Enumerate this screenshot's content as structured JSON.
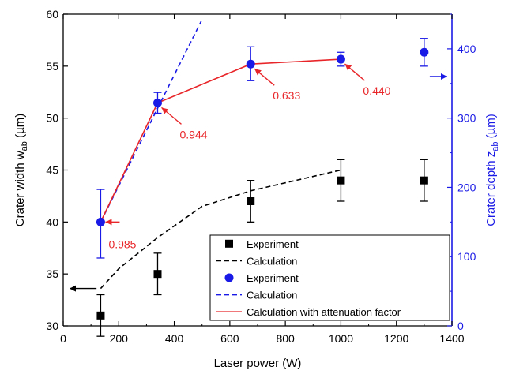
{
  "chart_data": {
    "type": "scatter",
    "xlabel": "Laser power (W)",
    "ylabel_left": {
      "main": "Crater width w",
      "sub": "ab",
      "unit": " (µm)"
    },
    "ylabel_right": {
      "main": "Crater depth z",
      "sub": "ab",
      "unit": " (µm)"
    },
    "xlim": [
      0,
      1400
    ],
    "ylim_left": [
      30,
      60
    ],
    "ylim_right": [
      0,
      450
    ],
    "x_ticks": [
      0,
      200,
      400,
      600,
      800,
      1000,
      1200,
      1400
    ],
    "y_left_ticks": [
      30,
      35,
      40,
      45,
      50,
      55,
      60
    ],
    "y_right_ticks": [
      0,
      100,
      200,
      300,
      400
    ],
    "grid": false,
    "legend_position": "bottom-right",
    "colors": {
      "black": "#000000",
      "blue": "#1a1ae6",
      "red": "#e8262a"
    },
    "series": [
      {
        "name": "Experiment",
        "axis": "left",
        "marker": "square",
        "color": "#000000",
        "x": [
          135,
          340,
          675,
          1000,
          1300
        ],
        "y": [
          31,
          35,
          42,
          44,
          44
        ],
        "err": [
          2,
          2,
          2,
          2,
          2
        ]
      },
      {
        "name": "Calculation",
        "axis": "left",
        "style": "dashed",
        "color": "#000000",
        "x": [
          135,
          200,
          340,
          500,
          675,
          1000
        ],
        "y": [
          33.6,
          35.5,
          38.5,
          41.5,
          43.0,
          45.0
        ]
      },
      {
        "name": "Experiment",
        "axis": "right",
        "marker": "circle",
        "color": "#1a1ae6",
        "x": [
          135,
          340,
          675,
          1000,
          1300
        ],
        "y": [
          150,
          322,
          378,
          385,
          395
        ],
        "err_up": [
          47,
          15,
          25,
          10,
          20
        ],
        "err_down": [
          52,
          15,
          24,
          10,
          20
        ]
      },
      {
        "name": "Calculation",
        "axis": "right",
        "style": "dashed",
        "color": "#1a1ae6",
        "x": [
          135,
          497
        ],
        "y": [
          150,
          440
        ]
      },
      {
        "name": "Calculation with attenuation factor",
        "axis": "right",
        "style": "solid",
        "color": "#e8262a",
        "x": [
          135,
          340,
          675,
          1000
        ],
        "y": [
          150,
          322,
          378,
          385
        ]
      }
    ],
    "annotations": [
      {
        "text": "0.985",
        "x": 135,
        "y": 150,
        "axis": "right",
        "label_dx": 30,
        "label_dy": 0
      },
      {
        "text": "0.944",
        "x": 340,
        "y": 322,
        "axis": "right",
        "label_dx": 40,
        "label_dy": -45
      },
      {
        "text": "0.633",
        "x": 675,
        "y": 378,
        "axis": "right",
        "label_dx": 40,
        "label_dy": -45
      },
      {
        "text": "0.440",
        "x": 1000,
        "y": 385,
        "axis": "right",
        "label_dx": 40,
        "label_dy": -45
      }
    ],
    "axis_arrows": [
      {
        "axis": "left",
        "y": 33.6,
        "direction": "left"
      },
      {
        "axis": "right",
        "y": 360,
        "direction": "right"
      }
    ]
  }
}
